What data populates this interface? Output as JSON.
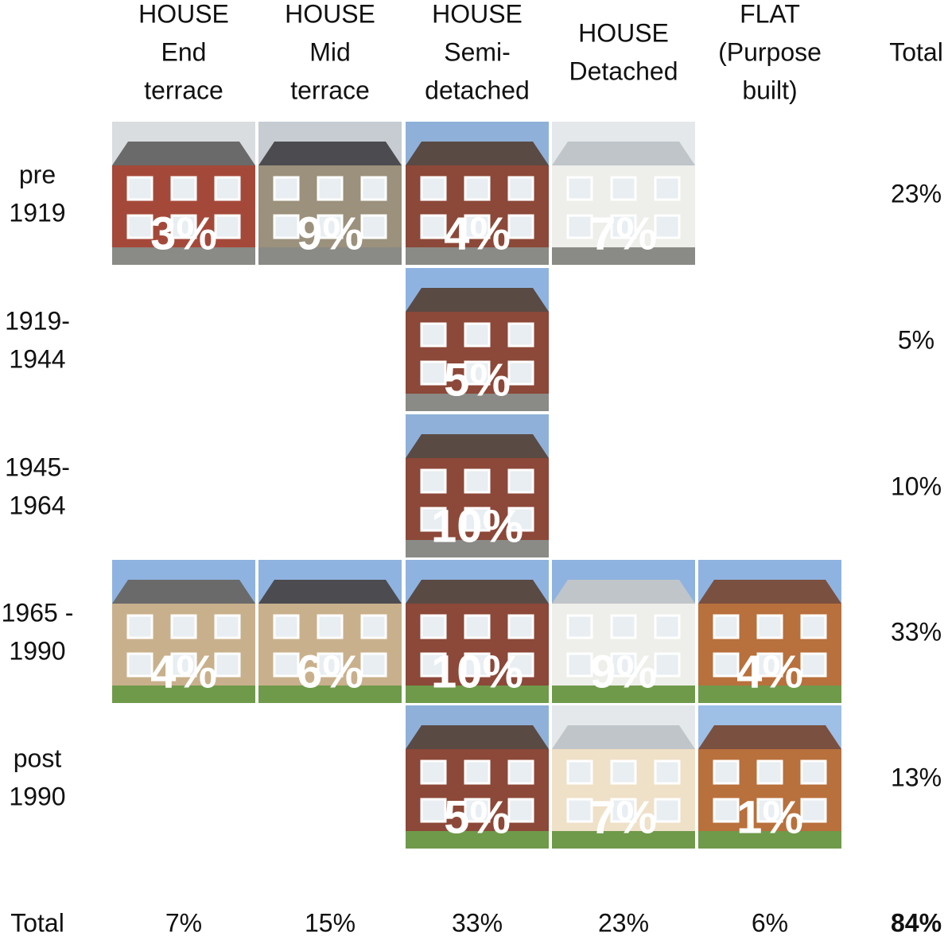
{
  "table": {
    "columns": [
      [
        "HOUSE",
        "End",
        "terrace"
      ],
      [
        "HOUSE",
        "Mid",
        "terrace"
      ],
      [
        "HOUSE",
        "Semi-",
        "detached"
      ],
      [
        "HOUSE",
        "Detached"
      ],
      [
        "FLAT",
        "(Purpose",
        "built)"
      ],
      [
        "Total"
      ]
    ],
    "rows": [
      {
        "label": [
          "pre",
          "1919"
        ],
        "cells": [
          "3%",
          "9%",
          "4%",
          "7%",
          null
        ],
        "total": "23%"
      },
      {
        "label": [
          "1919-",
          "1944"
        ],
        "cells": [
          null,
          null,
          "5%",
          null,
          null
        ],
        "total": "5%"
      },
      {
        "label": [
          "1945-",
          "1964"
        ],
        "cells": [
          null,
          null,
          "10%",
          null,
          null
        ],
        "total": "10%"
      },
      {
        "label": [
          "1965 -",
          "1990"
        ],
        "cells": [
          "4%",
          "6%",
          "10%",
          "9%",
          "4%"
        ],
        "total": "33%"
      },
      {
        "label": [
          "post",
          "1990"
        ],
        "cells": [
          null,
          null,
          "5%",
          "7%",
          "1%"
        ],
        "total": "13%"
      }
    ],
    "totals": {
      "label": "Total",
      "cells": [
        "7%",
        "15%",
        "33%",
        "23%",
        "6%"
      ],
      "total": "84%"
    }
  }
}
